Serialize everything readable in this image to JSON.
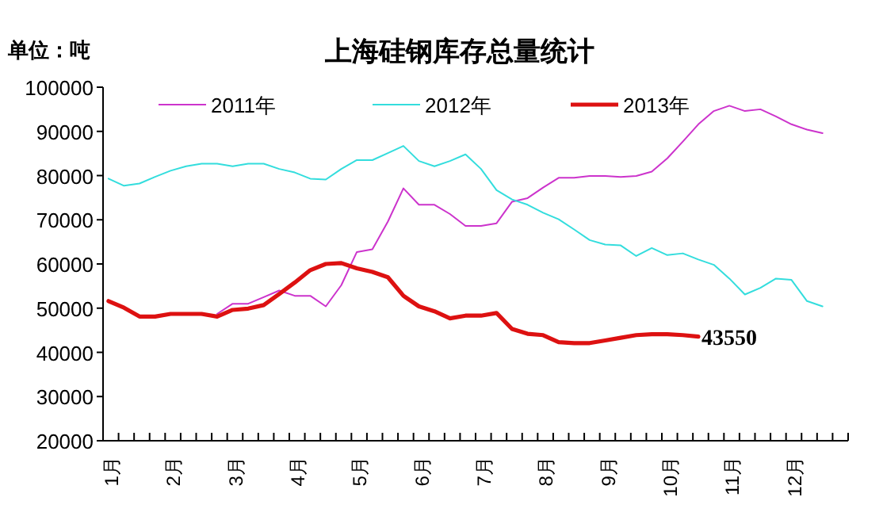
{
  "chart_data": {
    "type": "line",
    "title": "上海硅钢库存总量统计",
    "ylabel": "单位：吨",
    "categories": [
      "1月",
      null,
      null,
      null,
      "2月",
      null,
      null,
      null,
      "3月",
      null,
      null,
      null,
      "4月",
      null,
      null,
      null,
      "5月",
      null,
      null,
      null,
      "6月",
      null,
      null,
      null,
      "7月",
      null,
      null,
      null,
      "8月",
      null,
      null,
      null,
      "9月",
      null,
      null,
      null,
      "10月",
      null,
      null,
      null,
      "11月",
      null,
      null,
      null,
      "12月",
      null,
      null,
      null
    ],
    "ylim": [
      20000,
      100000
    ],
    "yticks": [
      20000,
      30000,
      40000,
      50000,
      60000,
      70000,
      80000,
      90000,
      100000
    ],
    "legend": "top",
    "grid": false,
    "series": [
      {
        "name": "2011年",
        "color": "#cc33cc",
        "values": [
          null,
          null,
          null,
          null,
          null,
          null,
          null,
          48700,
          51000,
          51000,
          52500,
          54000,
          52800,
          52800,
          50400,
          55200,
          62700,
          63300,
          69600,
          77100,
          73400,
          73400,
          71300,
          68600,
          68600,
          69200,
          74100,
          74900,
          77300,
          79500,
          79500,
          79900,
          79900,
          79700,
          79900,
          80900,
          83900,
          87700,
          91600,
          94600,
          95800,
          94600,
          95000,
          93400,
          91600,
          90400,
          89600,
          null
        ]
      },
      {
        "name": "2012年",
        "color": "#33dddd",
        "values": [
          79300,
          77700,
          78200,
          79700,
          81100,
          82100,
          82700,
          82700,
          82100,
          82700,
          82700,
          81500,
          80700,
          79300,
          79100,
          81500,
          83500,
          83500,
          85100,
          86700,
          83300,
          82100,
          83300,
          84800,
          81500,
          76700,
          74600,
          73400,
          71600,
          70100,
          67800,
          65400,
          64400,
          64200,
          61800,
          63600,
          62000,
          62400,
          61000,
          59800,
          56700,
          53100,
          54600,
          56700,
          56400,
          51600,
          50400,
          null
        ]
      },
      {
        "name": "2013年",
        "color": "#dd1111",
        "values": [
          51600,
          50100,
          48100,
          48100,
          48700,
          48700,
          48700,
          48100,
          49600,
          49900,
          50700,
          53200,
          55800,
          58600,
          60000,
          60200,
          59000,
          58200,
          57000,
          52800,
          50400,
          49300,
          47700,
          48300,
          48300,
          48900,
          45300,
          44200,
          43900,
          42300,
          42100,
          42100,
          42700,
          43300,
          43900,
          44100,
          44100,
          43900,
          43550,
          null,
          null,
          null,
          null,
          null,
          null,
          null,
          null,
          null
        ],
        "value_labels": [
          null,
          null,
          null,
          null,
          null,
          null,
          null,
          null,
          null,
          null,
          null,
          null,
          null,
          null,
          null,
          null,
          null,
          null,
          null,
          null,
          null,
          null,
          null,
          null,
          null,
          null,
          null,
          null,
          null,
          null,
          null,
          null,
          null,
          null,
          null,
          null,
          null,
          null,
          "43550",
          null,
          null,
          null,
          null,
          null,
          null,
          null,
          null,
          null
        ]
      }
    ]
  }
}
